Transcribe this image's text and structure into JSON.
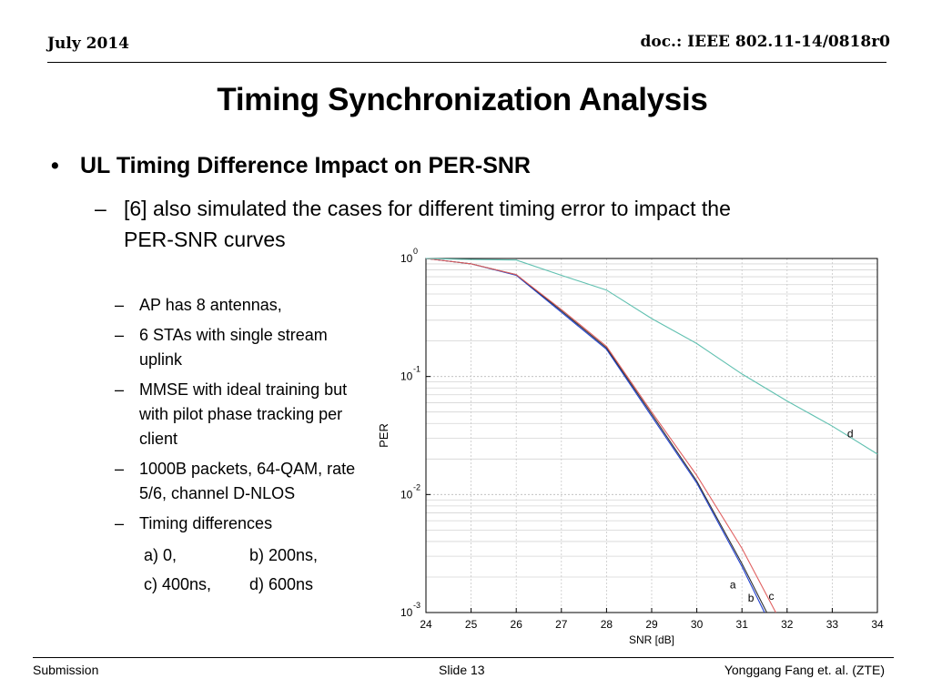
{
  "header": {
    "date": "July 2014",
    "doc": "doc.: IEEE 802.11-14/0818r0"
  },
  "title": "Timing Synchronization Analysis",
  "bullet": "UL Timing Difference Impact on PER-SNR",
  "sub_bullet": {
    "line1": "[6] also simulated the cases for different timing error to impact the",
    "line2": "PER-SNR curves"
  },
  "items": [
    "AP has 8 antennas,",
    "6 STAs with single stream uplink",
    "MMSE with ideal training but with pilot phase tracking per client",
    "1000B packets, 64-QAM, rate 5/6, channel D-NLOS",
    "Timing differences"
  ],
  "timings": {
    "a": "a) 0,",
    "b": "b) 200ns,",
    "c": "c) 400ns,",
    "d": "d) 600ns"
  },
  "footer": {
    "left": "Submission",
    "center": "Slide 13",
    "right": "Yonggang Fang et. al. (ZTE)"
  },
  "chart_data": {
    "type": "line",
    "xlabel": "SNR [dB]",
    "ylabel": "PER",
    "xlim": [
      24,
      34
    ],
    "ylim": [
      0.001,
      1
    ],
    "yscale": "log",
    "grid": true,
    "xticks": [
      "24",
      "25",
      "26",
      "27",
      "28",
      "29",
      "30",
      "31",
      "32",
      "33",
      "34"
    ],
    "yticks": [
      {
        "base": "10",
        "exp": "0",
        "value": 1
      },
      {
        "base": "10",
        "exp": "-1",
        "value": 0.1
      },
      {
        "base": "10",
        "exp": "-2",
        "value": 0.01
      },
      {
        "base": "10",
        "exp": "-3",
        "value": 0.001
      }
    ],
    "series": [
      {
        "label": "a",
        "color": "#2040d0",
        "label_at": [
          30.8,
          0.0016
        ],
        "points": [
          [
            24,
            1
          ],
          [
            25,
            0.9
          ],
          [
            26,
            0.72
          ],
          [
            27,
            0.35
          ],
          [
            28,
            0.17
          ],
          [
            29,
            0.046
          ],
          [
            30,
            0.0125
          ],
          [
            31,
            0.00245
          ],
          [
            31.5,
            0.00082
          ]
        ]
      },
      {
        "label": "b",
        "color": "#303030",
        "label_at": [
          31.2,
          0.00124
        ],
        "points": [
          [
            24,
            1
          ],
          [
            25,
            0.9
          ],
          [
            26,
            0.73
          ],
          [
            27,
            0.36
          ],
          [
            28,
            0.175
          ],
          [
            29,
            0.048
          ],
          [
            30,
            0.013
          ],
          [
            31,
            0.0026
          ],
          [
            31.55,
            0.00082
          ]
        ]
      },
      {
        "label": "c",
        "color": "#e06060",
        "label_at": [
          31.65,
          0.00128
        ],
        "points": [
          [
            24,
            1
          ],
          [
            25,
            0.9
          ],
          [
            26,
            0.73
          ],
          [
            27,
            0.37
          ],
          [
            28,
            0.18
          ],
          [
            29,
            0.05
          ],
          [
            30,
            0.0145
          ],
          [
            31,
            0.0035
          ],
          [
            31.75,
            0.00082
          ]
        ]
      },
      {
        "label": "d",
        "color": "#60c0b0",
        "label_at": [
          33.4,
          0.0305
        ],
        "points": [
          [
            24,
            1
          ],
          [
            25,
            0.98
          ],
          [
            26,
            0.97
          ],
          [
            27,
            0.72
          ],
          [
            28,
            0.54
          ],
          [
            29,
            0.31
          ],
          [
            30,
            0.19
          ],
          [
            31,
            0.105
          ],
          [
            32,
            0.062
          ],
          [
            33,
            0.038
          ],
          [
            34,
            0.022
          ]
        ]
      }
    ]
  }
}
